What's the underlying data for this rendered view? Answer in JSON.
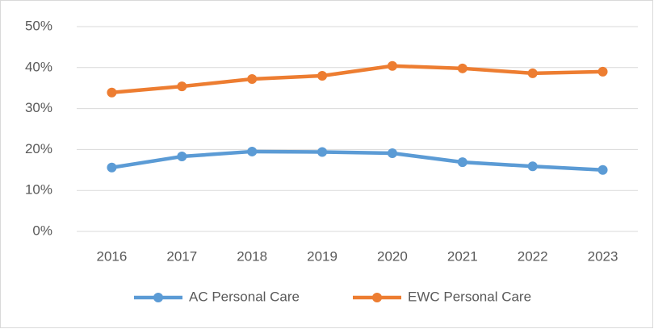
{
  "chart_data": {
    "type": "line",
    "categories": [
      "2016",
      "2017",
      "2018",
      "2019",
      "2020",
      "2021",
      "2022",
      "2023"
    ],
    "series": [
      {
        "name": "AC Personal Care",
        "color": "#5b9bd5",
        "values": [
          15.6,
          18.3,
          19.5,
          19.4,
          19.1,
          16.9,
          15.9,
          15.0
        ]
      },
      {
        "name": "EWC Personal Care",
        "color": "#ed7d31",
        "values": [
          33.9,
          35.4,
          37.2,
          38.0,
          40.4,
          39.8,
          38.6,
          39.0
        ]
      }
    ],
    "ylim": [
      0,
      50
    ],
    "yticks": [
      {
        "value": 0,
        "label": "0%"
      },
      {
        "value": 10,
        "label": "10%"
      },
      {
        "value": 20,
        "label": "20%"
      },
      {
        "value": 30,
        "label": "30%"
      },
      {
        "value": 40,
        "label": "40%"
      },
      {
        "value": 50,
        "label": "50%"
      }
    ],
    "grid": true,
    "legend": "bottom"
  }
}
